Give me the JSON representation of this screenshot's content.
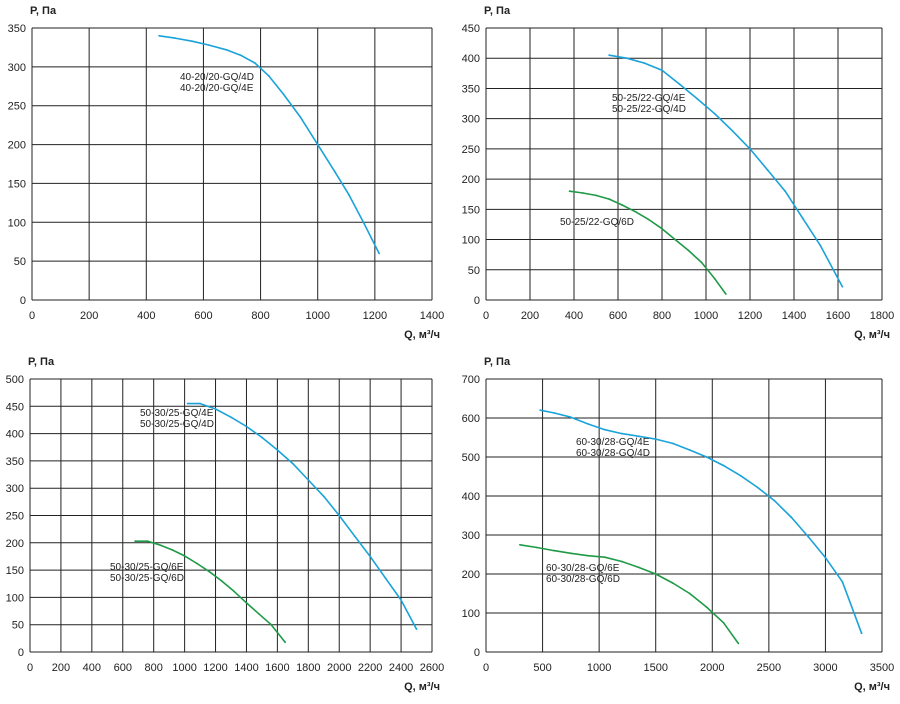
{
  "chart_data": [
    {
      "type": "line",
      "ylabel": "P, Па",
      "xlabel": "Q, м³/ч",
      "xlim": [
        0,
        1400
      ],
      "ylim": [
        0,
        350
      ],
      "xticks": [
        0,
        200,
        400,
        600,
        800,
        1000,
        1200,
        1400
      ],
      "yticks": [
        0,
        50,
        100,
        150,
        200,
        250,
        300,
        350
      ],
      "grid": true,
      "series": [
        {
          "color": "#1aa3d9",
          "labels": [
            "40-20/20-GQ/4D",
            "40-20/20-GQ/4E"
          ],
          "x": [
            445,
            500,
            560,
            620,
            680,
            730,
            780,
            830,
            880,
            940,
            1000,
            1060,
            1110,
            1160,
            1215
          ],
          "y": [
            340,
            337,
            333,
            328,
            322,
            315,
            305,
            288,
            265,
            235,
            200,
            165,
            135,
            100,
            60
          ]
        }
      ]
    },
    {
      "type": "line",
      "ylabel": "P, Па",
      "xlabel": "Q, м³/ч",
      "xlim": [
        0,
        1800
      ],
      "ylim": [
        0,
        450
      ],
      "xticks": [
        0,
        200,
        400,
        600,
        800,
        1000,
        1200,
        1400,
        1600,
        1800
      ],
      "yticks": [
        0,
        50,
        100,
        150,
        200,
        250,
        300,
        350,
        400,
        450
      ],
      "grid": true,
      "series": [
        {
          "color": "#1aa3d9",
          "labels": [
            "50-25/22-GQ/4E",
            "50-25/22-GQ/4D"
          ],
          "x": [
            560,
            640,
            720,
            800,
            880,
            960,
            1040,
            1120,
            1200,
            1280,
            1360,
            1440,
            1520,
            1620
          ],
          "y": [
            405,
            400,
            392,
            380,
            357,
            333,
            308,
            280,
            250,
            215,
            180,
            135,
            90,
            22
          ]
        },
        {
          "color": "#1f9a47",
          "labels": [
            "50-25/22-GQ/6D"
          ],
          "x": [
            380,
            440,
            500,
            560,
            620,
            680,
            740,
            800,
            860,
            920,
            980,
            1040,
            1090
          ],
          "y": [
            180,
            177,
            173,
            167,
            157,
            146,
            133,
            118,
            100,
            82,
            62,
            35,
            10
          ]
        }
      ]
    },
    {
      "type": "line",
      "ylabel": "P, Па",
      "xlabel": "Q, м³/ч",
      "xlim": [
        0,
        2600
      ],
      "ylim": [
        0,
        500
      ],
      "xticks": [
        0,
        200,
        400,
        600,
        800,
        1000,
        1200,
        1400,
        1600,
        1800,
        2000,
        2200,
        2400,
        2600
      ],
      "yticks": [
        0,
        50,
        100,
        150,
        200,
        250,
        300,
        350,
        400,
        450,
        500
      ],
      "grid": true,
      "series": [
        {
          "color": "#1aa3d9",
          "labels": [
            "50-30/25-GQ/4E",
            "50-30/25-GQ/4D"
          ],
          "x": [
            1020,
            1100,
            1200,
            1300,
            1400,
            1500,
            1600,
            1700,
            1800,
            1900,
            2000,
            2100,
            2200,
            2300,
            2400,
            2500
          ],
          "y": [
            455,
            455,
            445,
            430,
            413,
            393,
            370,
            345,
            315,
            285,
            250,
            212,
            175,
            135,
            95,
            42
          ]
        },
        {
          "color": "#1f9a47",
          "labels": [
            "50-30/25-GQ/6E",
            "50-30/25-GQ/6D"
          ],
          "x": [
            680,
            760,
            840,
            920,
            1000,
            1080,
            1160,
            1240,
            1320,
            1400,
            1480,
            1560,
            1650
          ],
          "y": [
            203,
            203,
            196,
            187,
            176,
            162,
            147,
            130,
            111,
            90,
            70,
            50,
            18
          ]
        }
      ]
    },
    {
      "type": "line",
      "ylabel": "P, Па",
      "xlabel": "Q, м³/ч",
      "xlim": [
        0,
        3500
      ],
      "ylim": [
        0,
        700
      ],
      "xticks": [
        0,
        500,
        1000,
        1500,
        2000,
        2500,
        3000,
        3500
      ],
      "yticks": [
        0,
        100,
        200,
        300,
        400,
        500,
        600,
        700
      ],
      "grid": true,
      "series": [
        {
          "color": "#1aa3d9",
          "labels": [
            "60-30/28-GQ/4E",
            "60-30/28-GQ/4D"
          ],
          "x": [
            480,
            600,
            750,
            900,
            1050,
            1200,
            1350,
            1500,
            1650,
            1800,
            1950,
            2100,
            2250,
            2400,
            2550,
            2700,
            2850,
            3000,
            3150,
            3320
          ],
          "y": [
            620,
            613,
            602,
            585,
            570,
            560,
            553,
            546,
            535,
            518,
            500,
            478,
            452,
            422,
            388,
            345,
            295,
            242,
            180,
            48
          ]
        },
        {
          "color": "#1f9a47",
          "labels": [
            "60-30/28-GQ/6E",
            "60-30/28-GQ/6D"
          ],
          "x": [
            300,
            450,
            600,
            750,
            900,
            1050,
            1200,
            1350,
            1500,
            1650,
            1800,
            1950,
            2100,
            2230
          ],
          "y": [
            275,
            268,
            260,
            253,
            247,
            243,
            232,
            217,
            200,
            177,
            150,
            115,
            75,
            22
          ]
        }
      ]
    }
  ]
}
